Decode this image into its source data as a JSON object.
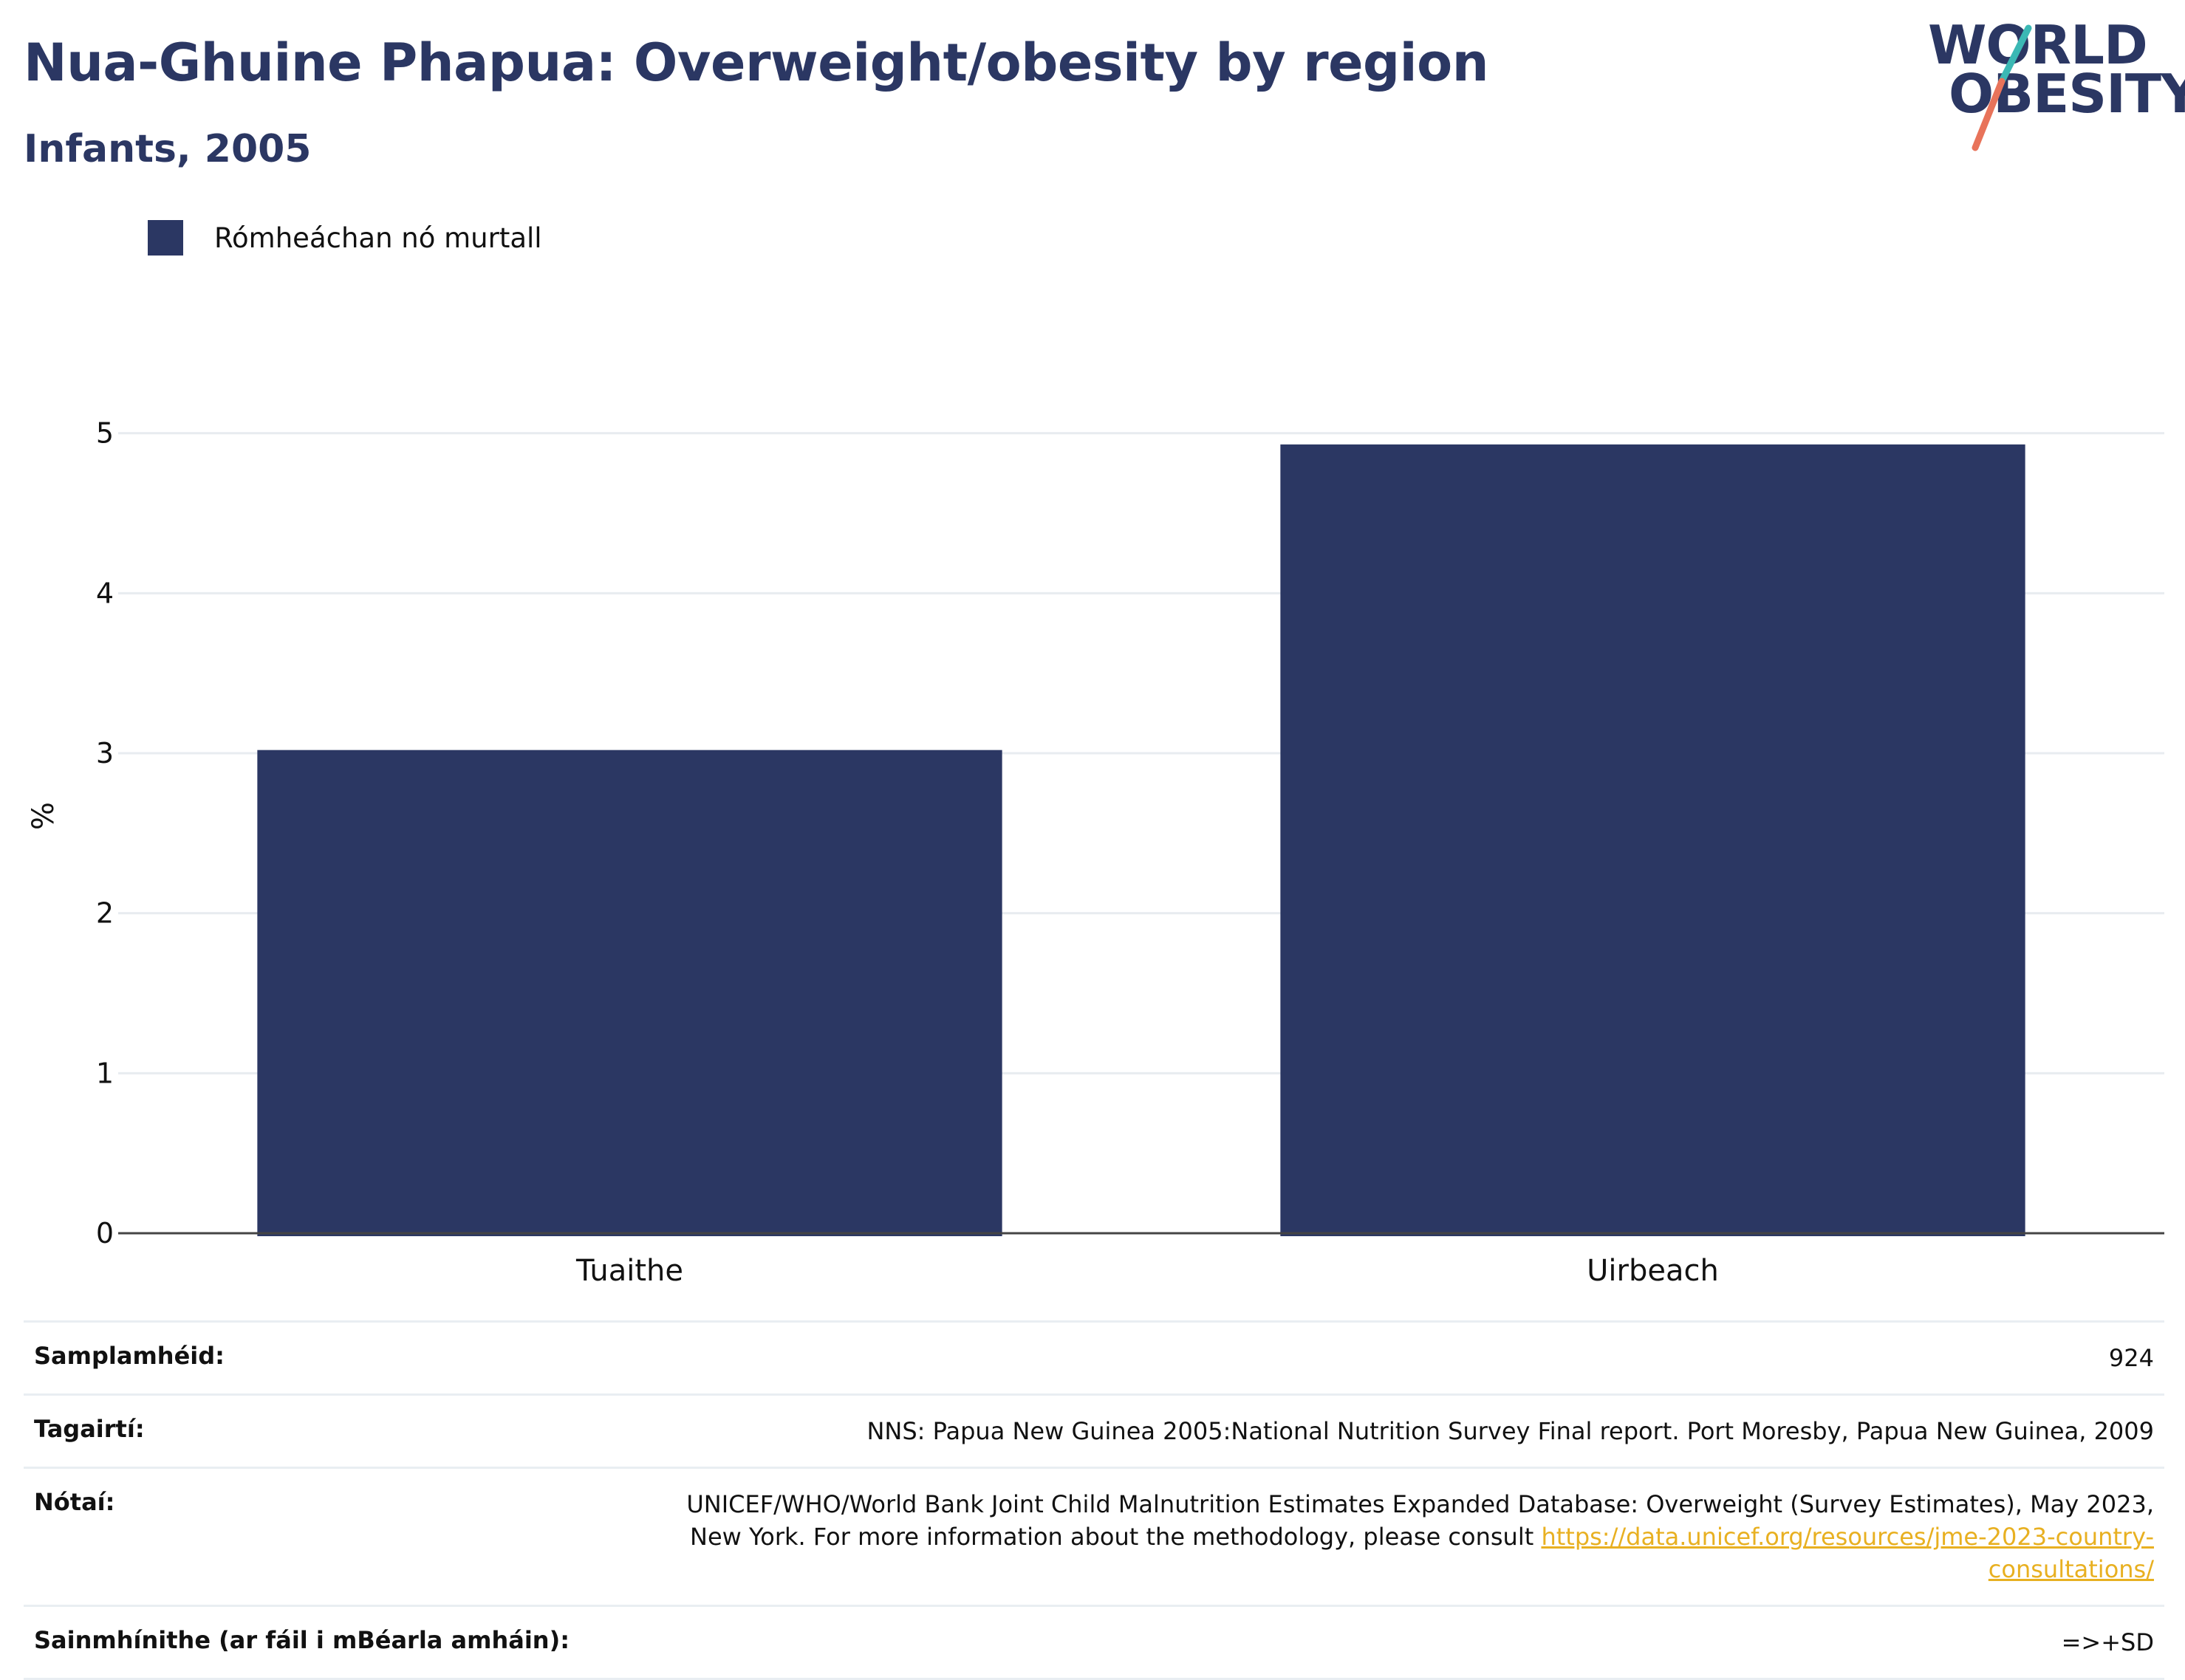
{
  "header": {
    "title": "Nua-Ghuine Phapua: Overweight/obesity by region",
    "subtitle": "Infants, 2005"
  },
  "logo": {
    "line1": "WORLD",
    "line2": "OBESITY",
    "colors": {
      "slash_top": "#3bb8b4",
      "slash_bottom": "#e8735a",
      "text": "#2b3763"
    }
  },
  "legend": {
    "label": "Rómheáchan nó murtall",
    "color": "#2b3763"
  },
  "chart_data": {
    "type": "bar",
    "categories": [
      "Tuaithe",
      "Uirbeach"
    ],
    "series": [
      {
        "name": "Rómheáchan nó murtall",
        "values": [
          3.02,
          4.93
        ],
        "color": "#2b3763"
      }
    ],
    "ylabel": "%",
    "xlabel": "",
    "ylim": [
      0,
      5.4
    ],
    "yticks": [
      0,
      1,
      2,
      3,
      4,
      5
    ],
    "grid": true,
    "legend_position": "top-left"
  },
  "info": {
    "sample_label": "Samplamhéid:",
    "sample_value": "924",
    "references_label": "Tagairtí:",
    "references_value": "NNS: Papua New Guinea 2005:National Nutrition Survey Final report. Port Moresby, Papua New Guinea, 2009",
    "notes_label": "Nótaí:",
    "notes_text": "UNICEF/WHO/World Bank Joint Child Malnutrition Estimates Expanded Database: Overweight (Survey Estimates), May 2023, New York. For more information about the methodology, please consult ",
    "notes_link": "https://data.unicef.org/resources/jme-2023-country-consultations/",
    "definitions_label": "Sainmhínithe (ar fáil i mBéarla amháin):",
    "definitions_value": "=>+SD"
  }
}
